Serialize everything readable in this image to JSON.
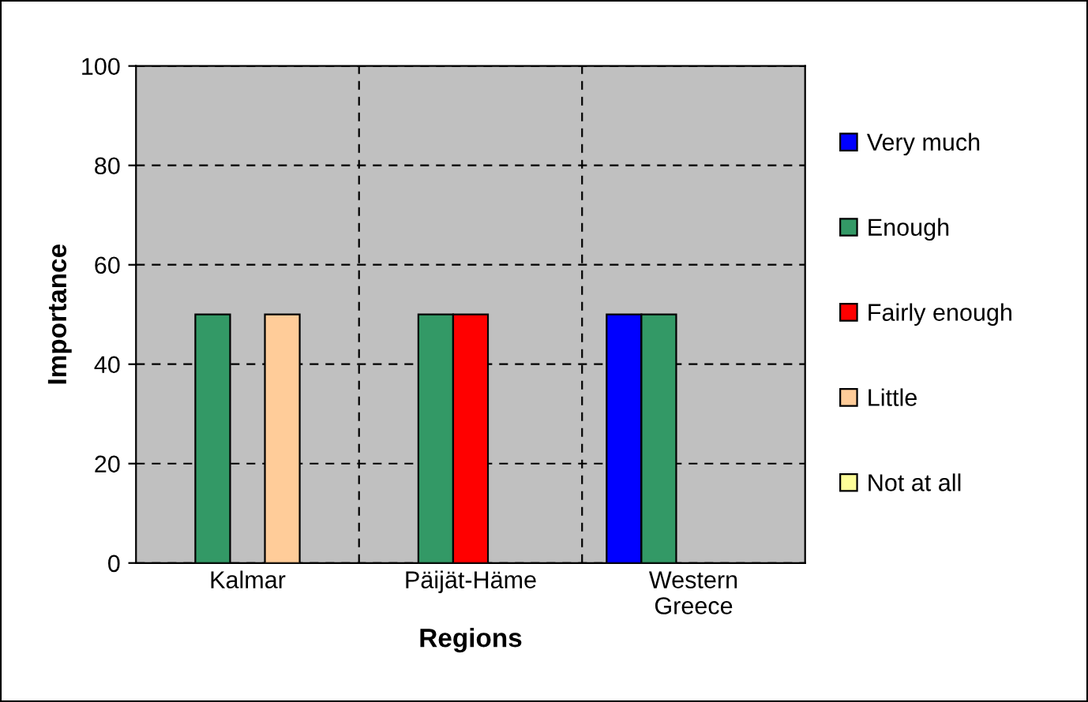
{
  "chart_data": {
    "type": "bar",
    "xlabel": "Regions",
    "ylabel": "Importance",
    "categories": [
      "Kalmar",
      "Päijät-Häme",
      "Western\nGreece"
    ],
    "series": [
      {
        "name": "Very much",
        "color": "#0000ff",
        "values": [
          0,
          0,
          50
        ]
      },
      {
        "name": "Enough",
        "color": "#339966",
        "values": [
          50,
          50,
          50
        ]
      },
      {
        "name": "Fairly enough",
        "color": "#ff0000",
        "values": [
          0,
          50,
          0
        ]
      },
      {
        "name": "Little",
        "color": "#ffcc99",
        "values": [
          50,
          0,
          0
        ]
      },
      {
        "name": "Not at all",
        "color": "#ffff99",
        "values": [
          0,
          0,
          0
        ]
      }
    ],
    "ylim": [
      0,
      100
    ],
    "yticks": [
      0,
      20,
      40,
      60,
      80,
      100
    ],
    "grid": true,
    "legend": "right"
  }
}
